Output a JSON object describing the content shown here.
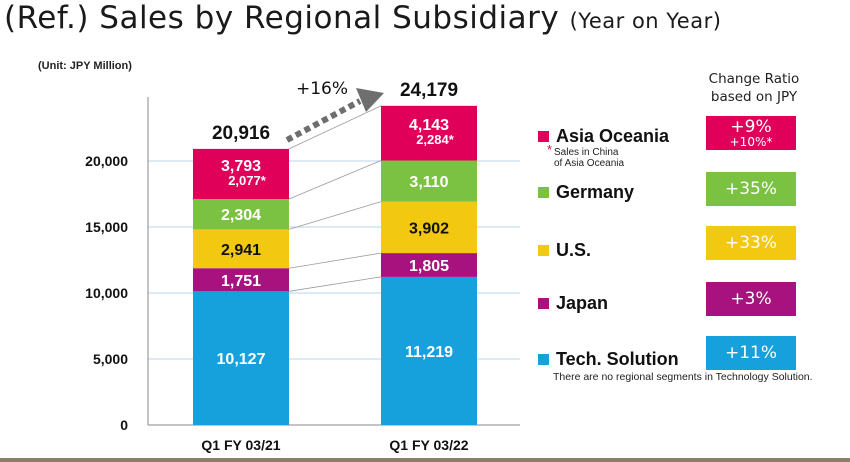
{
  "title": "(Ref.) Sales by Regional Subsidiary",
  "title_suffix": "(Year on Year)",
  "unit_label": "(Unit: JPY Million)",
  "ratio_header_line1": "Change Ratio",
  "ratio_header_line2": "based on JPY",
  "china_note_star": "*",
  "china_note_line1": "Sales in China",
  "china_note_line2": "of Asia Oceania",
  "tech_note": "There are no regional segments in Technology Solution.",
  "growth_label": "+16%",
  "colors": {
    "asia_oceania": "#e0005a",
    "germany": "#7cc242",
    "us": "#f2c811",
    "japan": "#a8127f",
    "tech_solution": "#16a0dc"
  },
  "legend": [
    {
      "key": "asia_oceania",
      "label": "Asia Oceania",
      "ratio": "+9%",
      "ratio_sub": "+10%*"
    },
    {
      "key": "germany",
      "label": "Germany",
      "ratio": "+35%",
      "ratio_sub": ""
    },
    {
      "key": "us",
      "label": "U.S.",
      "ratio": "+33%",
      "ratio_sub": ""
    },
    {
      "key": "japan",
      "label": "Japan",
      "ratio": "+3%",
      "ratio_sub": ""
    },
    {
      "key": "tech_solution",
      "label": "Tech. Solution",
      "ratio": "+11%",
      "ratio_sub": ""
    }
  ],
  "chart_data": {
    "type": "bar",
    "stacked": true,
    "categories": [
      "Q1 FY 03/21",
      "Q1 FY 03/22"
    ],
    "series": [
      {
        "name": "Tech. Solution",
        "key": "tech_solution",
        "values": [
          10127,
          11219
        ]
      },
      {
        "name": "Japan",
        "key": "japan",
        "values": [
          1751,
          1805
        ]
      },
      {
        "name": "U.S.",
        "key": "us",
        "values": [
          2941,
          3902
        ]
      },
      {
        "name": "Germany",
        "key": "germany",
        "values": [
          2304,
          3110
        ]
      },
      {
        "name": "Asia Oceania",
        "key": "asia_oceania",
        "values": [
          3793,
          4143
        ]
      }
    ],
    "china_sales": [
      "2,077*",
      "2,284*"
    ],
    "totals": [
      20916,
      24179
    ],
    "ylim": [
      0,
      25000
    ],
    "yticks": [
      0,
      5000,
      10000,
      15000,
      20000
    ],
    "grid": true,
    "legend_position": "right"
  }
}
